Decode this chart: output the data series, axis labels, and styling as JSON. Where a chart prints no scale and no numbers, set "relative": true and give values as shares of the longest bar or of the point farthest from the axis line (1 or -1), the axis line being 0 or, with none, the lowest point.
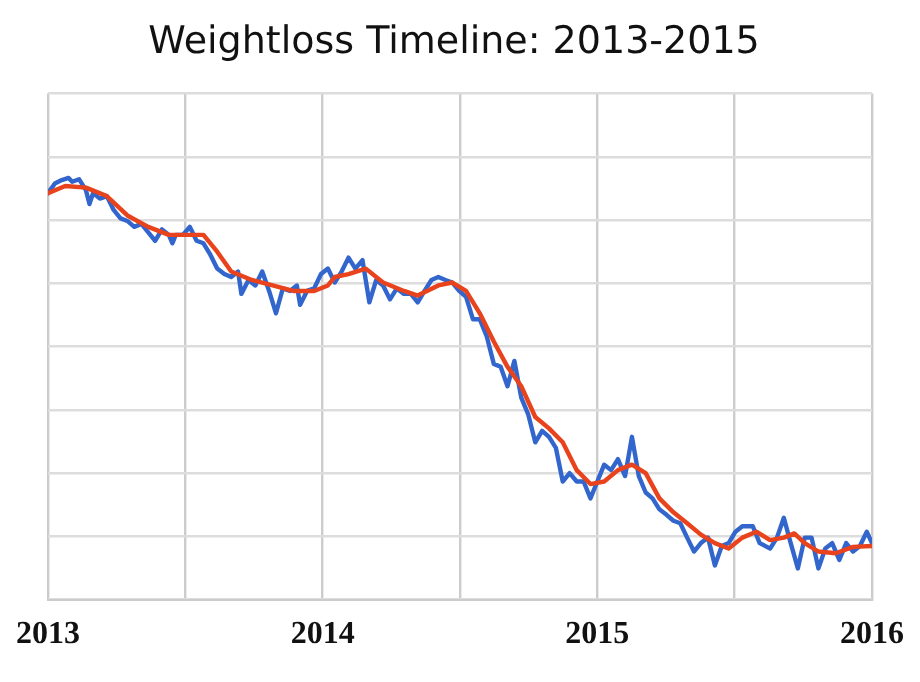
{
  "chart_data": {
    "type": "line",
    "title": "Weightloss Timeline: 2013-2015",
    "relative": true,
    "grid": true,
    "legend": false,
    "marker": "none",
    "line_style": "solid",
    "xlim": [
      2013,
      2016
    ],
    "xticks": [
      2013,
      {
        "value": 2013.5,
        "label": null
      },
      2014,
      {
        "value": 2014.5,
        "label": null
      },
      2015,
      {
        "value": 2015.5,
        "label": null
      },
      2016
    ],
    "series": [
      {
        "color": "#3366cc",
        "x": [
          2013.0,
          2013.025,
          2013.05,
          2013.075,
          2013.088,
          2013.113,
          2013.138,
          2013.151,
          2013.164,
          2013.189,
          2013.214,
          2013.239,
          2013.264,
          2013.289,
          2013.314,
          2013.34,
          2013.365,
          2013.39,
          2013.415,
          2013.44,
          2013.453,
          2013.465,
          2013.491,
          2013.516,
          2013.541,
          2013.566,
          2013.591,
          2013.616,
          2013.642,
          2013.667,
          2013.692,
          2013.704,
          2013.73,
          2013.755,
          2013.78,
          2013.805,
          2013.83,
          2013.855,
          2013.881,
          2013.906,
          2013.918,
          2013.943,
          2013.969,
          2013.994,
          2014.019,
          2014.044,
          2014.069,
          2014.094,
          2014.119,
          2014.145,
          2014.17,
          2014.195,
          2014.22,
          2014.245,
          2014.27,
          2014.296,
          2014.321,
          2014.346,
          2014.371,
          2014.396,
          2014.421,
          2014.447,
          2014.472,
          2014.497,
          2014.522,
          2014.547,
          2014.572,
          2014.597,
          2014.623,
          2014.648,
          2014.673,
          2014.698,
          2014.723,
          2014.748,
          2014.774,
          2014.799,
          2014.824,
          2014.849,
          2014.874,
          2014.899,
          2014.925,
          2014.95,
          2014.975,
          2015.0,
          2015.025,
          2015.05,
          2015.075,
          2015.101,
          2015.126,
          2015.151,
          2015.176,
          2015.201,
          2015.226,
          2015.252,
          2015.277,
          2015.302,
          2015.327,
          2015.352,
          2015.377,
          2015.403,
          2015.428,
          2015.453,
          2015.478,
          2015.503,
          2015.528,
          2015.566,
          2015.591,
          2015.629,
          2015.654,
          2015.679,
          2015.704,
          2015.73,
          2015.755,
          2015.78,
          2015.805,
          2015.83,
          2015.855,
          2015.881,
          2015.906,
          2015.931,
          2015.956,
          2015.981,
          2016.0
        ],
        "values": [
          0.964,
          0.987,
          0.995,
          1,
          0.991,
          0.997,
          0.971,
          0.938,
          0.964,
          0.951,
          0.957,
          0.924,
          0.904,
          0.898,
          0.884,
          0.891,
          0.871,
          0.851,
          0.878,
          0.865,
          0.845,
          0.865,
          0.865,
          0.884,
          0.851,
          0.845,
          0.818,
          0.785,
          0.772,
          0.765,
          0.778,
          0.725,
          0.758,
          0.745,
          0.778,
          0.732,
          0.679,
          0.738,
          0.732,
          0.745,
          0.699,
          0.732,
          0.738,
          0.772,
          0.785,
          0.752,
          0.778,
          0.811,
          0.785,
          0.805,
          0.705,
          0.758,
          0.745,
          0.712,
          0.738,
          0.725,
          0.725,
          0.705,
          0.732,
          0.758,
          0.765,
          0.758,
          0.752,
          0.732,
          0.718,
          0.665,
          0.665,
          0.625,
          0.559,
          0.552,
          0.506,
          0.566,
          0.479,
          0.44,
          0.373,
          0.4,
          0.386,
          0.36,
          0.28,
          0.3,
          0.28,
          0.28,
          0.24,
          0.28,
          0.32,
          0.307,
          0.333,
          0.293,
          0.386,
          0.293,
          0.254,
          0.24,
          0.214,
          0.201,
          0.187,
          0.181,
          0.147,
          0.114,
          0.134,
          0.147,
          0.081,
          0.127,
          0.134,
          0.161,
          0.174,
          0.174,
          0.134,
          0.121,
          0.147,
          0.194,
          0.134,
          0.074,
          0.147,
          0.147,
          0.074,
          0.121,
          0.134,
          0.094,
          0.134,
          0.114,
          0.127,
          0.161,
          0.134
        ]
      },
      {
        "color": "#e8431c",
        "x": [
          2013.0,
          2013.063,
          2013.138,
          2013.214,
          2013.289,
          2013.365,
          2013.44,
          2013.516,
          2013.566,
          2013.616,
          2013.667,
          2013.742,
          2013.818,
          2013.893,
          2013.969,
          2014.019,
          2014.044,
          2014.094,
          2014.157,
          2014.22,
          2014.296,
          2014.346,
          2014.421,
          2014.472,
          2014.522,
          2014.572,
          2014.623,
          2014.673,
          2014.723,
          2014.774,
          2014.824,
          2014.874,
          2014.925,
          2014.975,
          2015.025,
          2015.075,
          2015.126,
          2015.176,
          2015.226,
          2015.277,
          2015.327,
          2015.377,
          2015.428,
          2015.478,
          2015.528,
          2015.579,
          2015.629,
          2015.679,
          2015.717,
          2015.755,
          2015.805,
          2015.868,
          2015.931,
          2016.0
        ],
        "values": [
          0.964,
          0.981,
          0.977,
          0.957,
          0.911,
          0.884,
          0.865,
          0.865,
          0.865,
          0.825,
          0.778,
          0.758,
          0.745,
          0.732,
          0.732,
          0.745,
          0.765,
          0.772,
          0.785,
          0.752,
          0.732,
          0.721,
          0.745,
          0.752,
          0.732,
          0.679,
          0.612,
          0.552,
          0.506,
          0.433,
          0.406,
          0.373,
          0.307,
          0.274,
          0.28,
          0.307,
          0.32,
          0.3,
          0.24,
          0.207,
          0.181,
          0.154,
          0.134,
          0.121,
          0.147,
          0.161,
          0.141,
          0.147,
          0.157,
          0.134,
          0.114,
          0.11,
          0.125,
          0.127
        ]
      }
    ]
  }
}
